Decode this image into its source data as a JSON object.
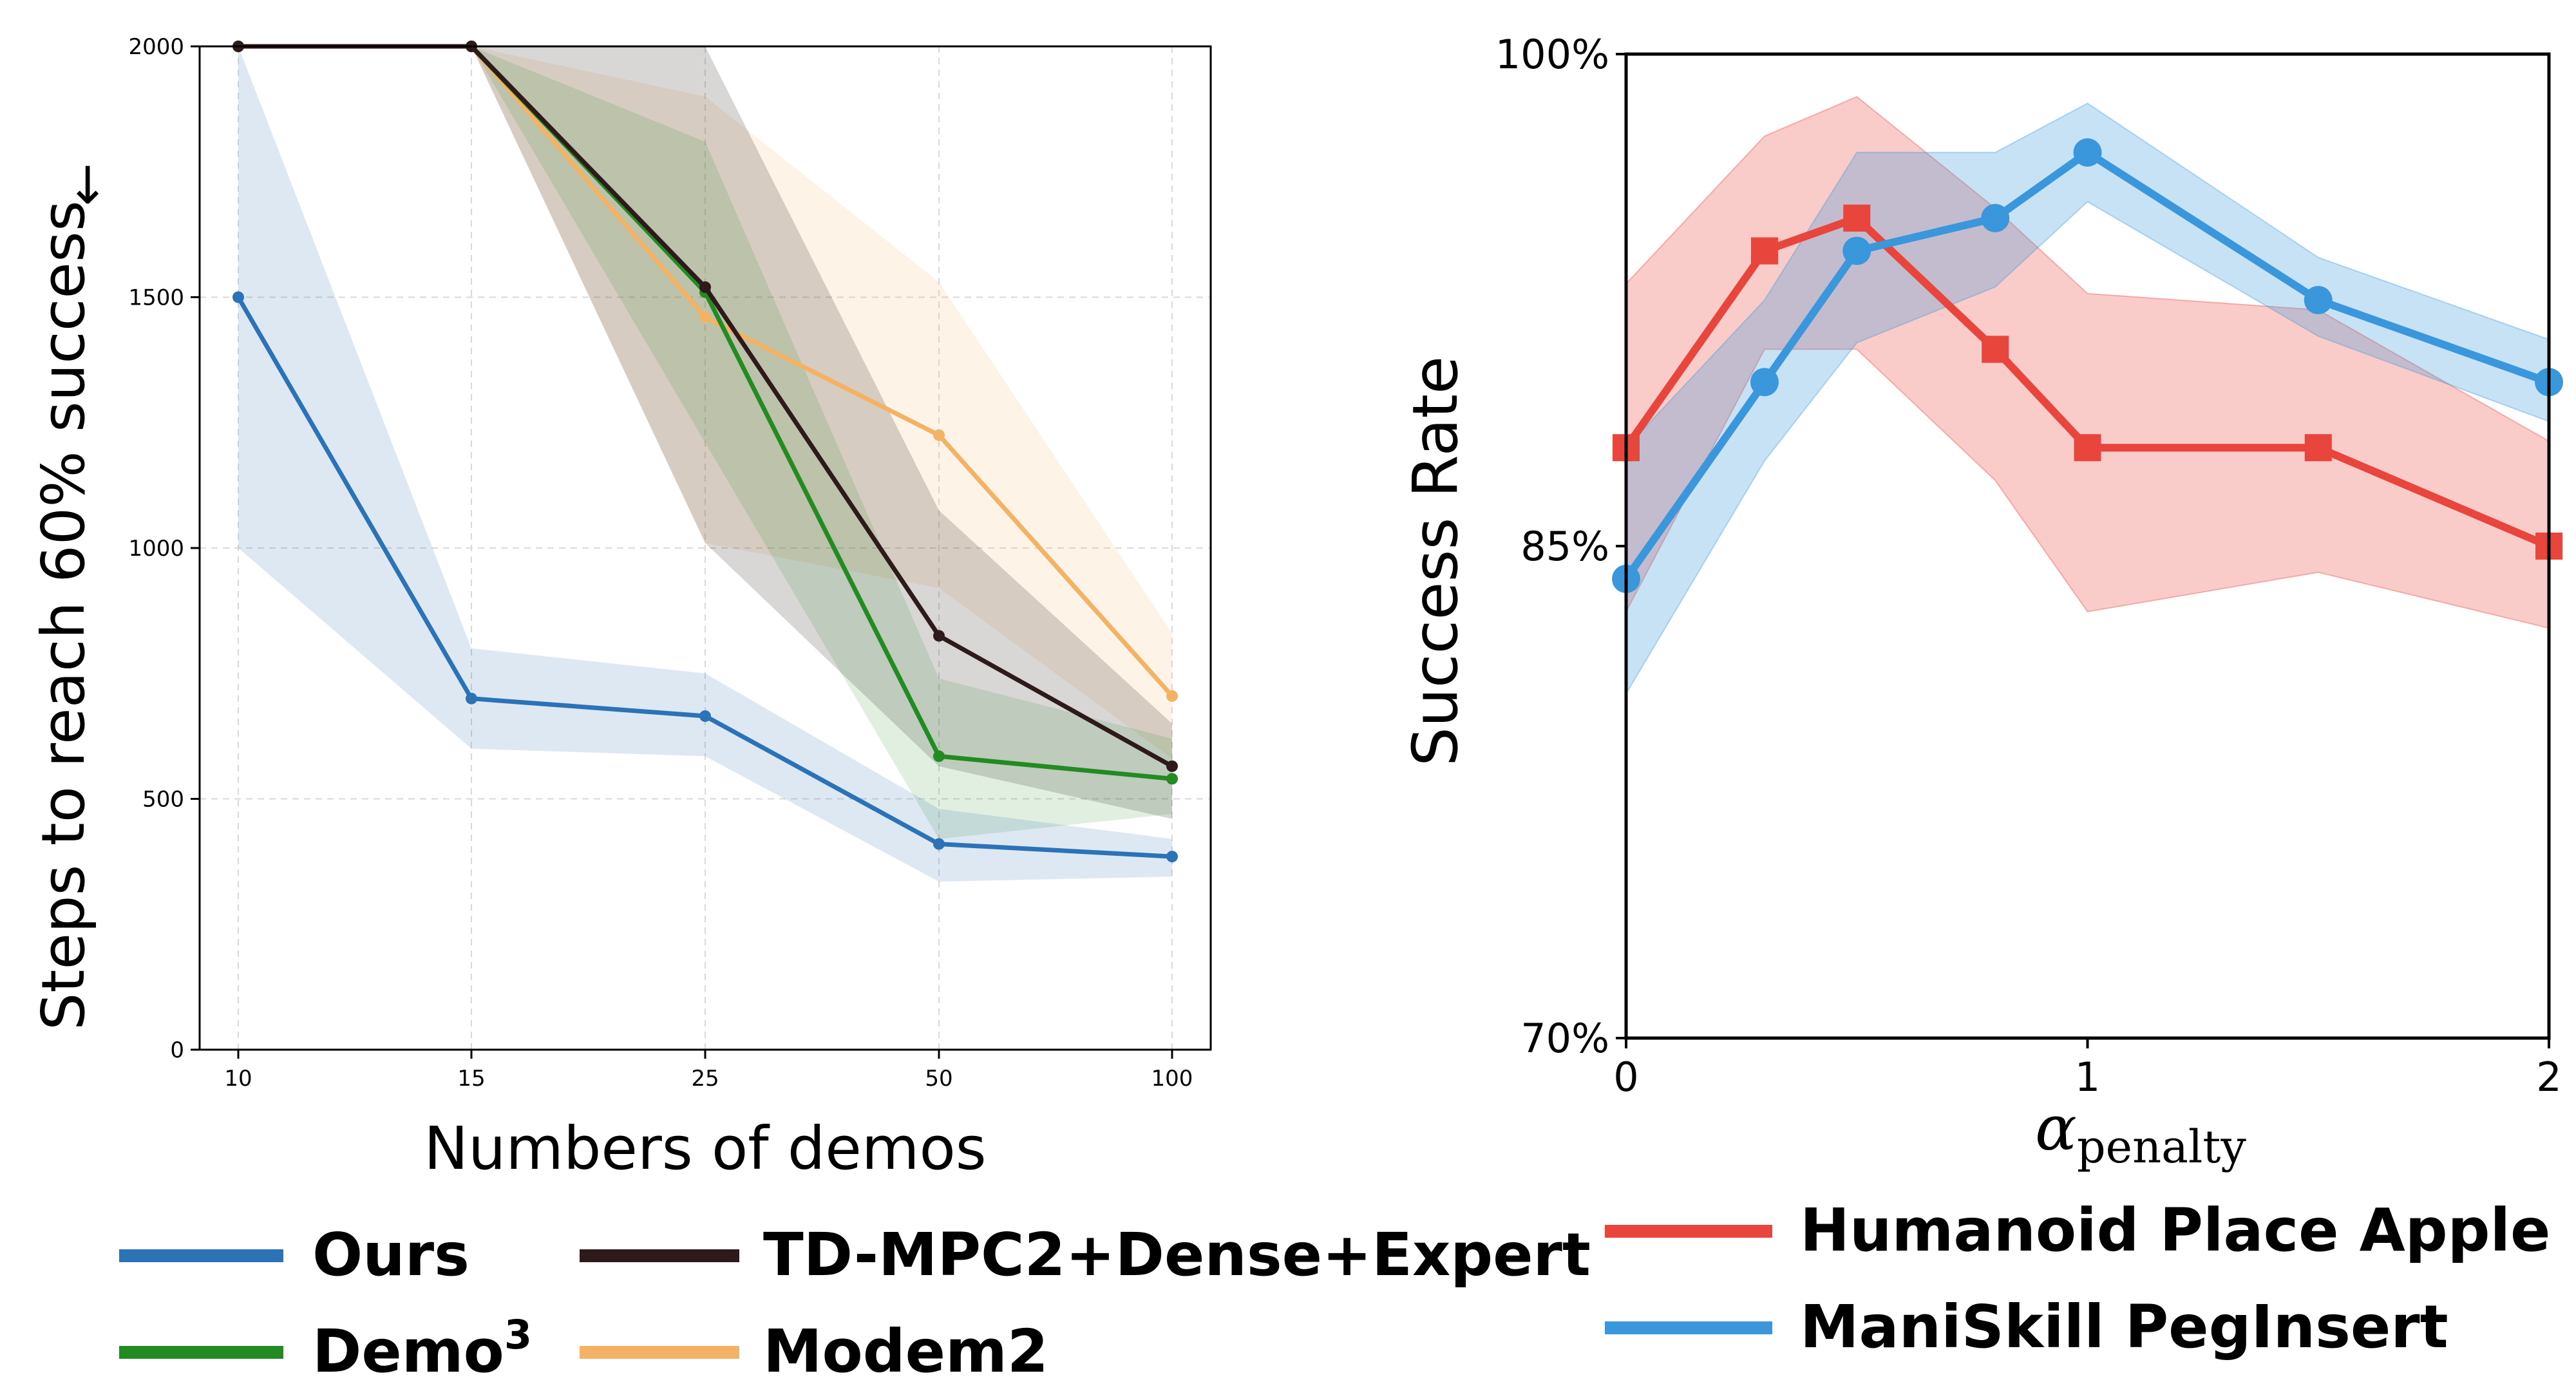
{
  "chart_data": [
    {
      "type": "line",
      "xlabel": "Numbers of demos",
      "ylabel": "Steps to reach 60% success",
      "ylabel_arrow": "↓",
      "categories": [
        "10",
        "15",
        "25",
        "50",
        "100"
      ],
      "x_scale": "categorical (equally spaced)",
      "ylim": [
        0,
        2000
      ],
      "yticks": [
        "0",
        "500",
        "1000",
        "1500",
        "2000"
      ],
      "grid": true,
      "legend_position": "below",
      "series": [
        {
          "name": "Ours",
          "color": "#2b73b6",
          "values": [
            1500,
            700,
            665,
            410,
            385
          ],
          "lower": [
            1000,
            600,
            585,
            335,
            345
          ],
          "upper": [
            2000,
            800,
            750,
            480,
            420
          ]
        },
        {
          "name": "Demo³",
          "color": "#228b22",
          "values": [
            2000,
            2000,
            1510,
            585,
            540
          ],
          "lower": [
            2000,
            2000,
            1210,
            420,
            470
          ],
          "upper": [
            2000,
            2000,
            1810,
            740,
            620
          ]
        },
        {
          "name": "TD-MPC2+Dense+Expert",
          "color": "#2e1a1a",
          "values": [
            2000,
            2000,
            1520,
            825,
            565
          ],
          "lower": [
            2000,
            2000,
            1010,
            565,
            460
          ],
          "upper": [
            2000,
            2000,
            2000,
            1075,
            650
          ]
        },
        {
          "name": "Modem2",
          "color": "#f4b264",
          "values": [
            2000,
            2000,
            1460,
            1225,
            705
          ],
          "lower": [
            2000,
            2000,
            1010,
            920,
            580
          ],
          "upper": [
            2000,
            2000,
            1900,
            1530,
            830
          ]
        }
      ]
    },
    {
      "type": "line",
      "xlabel": "α_penalty",
      "ylabel": "Success Rate",
      "x": [
        0,
        0.3,
        0.5,
        0.8,
        1,
        1.5,
        2
      ],
      "xlim": [
        0,
        2
      ],
      "xticks": [
        "0",
        "1",
        "2"
      ],
      "ylim": [
        70,
        100
      ],
      "yticks": [
        "70%",
        "85%",
        "100%"
      ],
      "grid": false,
      "legend_position": "below",
      "series": [
        {
          "name": "Humanoid Place Apple",
          "color": "#e8453c",
          "marker": "square",
          "values": [
            88,
            94,
            95,
            91,
            88,
            88,
            85
          ],
          "lower": [
            83,
            91,
            91,
            87,
            83,
            84.2,
            82.5
          ],
          "upper": [
            93,
            97.5,
            98.7,
            95.3,
            92.7,
            92.2,
            88.2
          ]
        },
        {
          "name": "ManiSkill PegInsert",
          "color": "#3a97db",
          "marker": "circle",
          "values": [
            84,
            90,
            94,
            95,
            97,
            92.5,
            90
          ],
          "lower": [
            80.5,
            87.6,
            91.2,
            92.9,
            95.5,
            91.4,
            88.8
          ],
          "upper": [
            88,
            92.5,
            97,
            97,
            98.5,
            93.8,
            91.3
          ]
        }
      ]
    }
  ]
}
